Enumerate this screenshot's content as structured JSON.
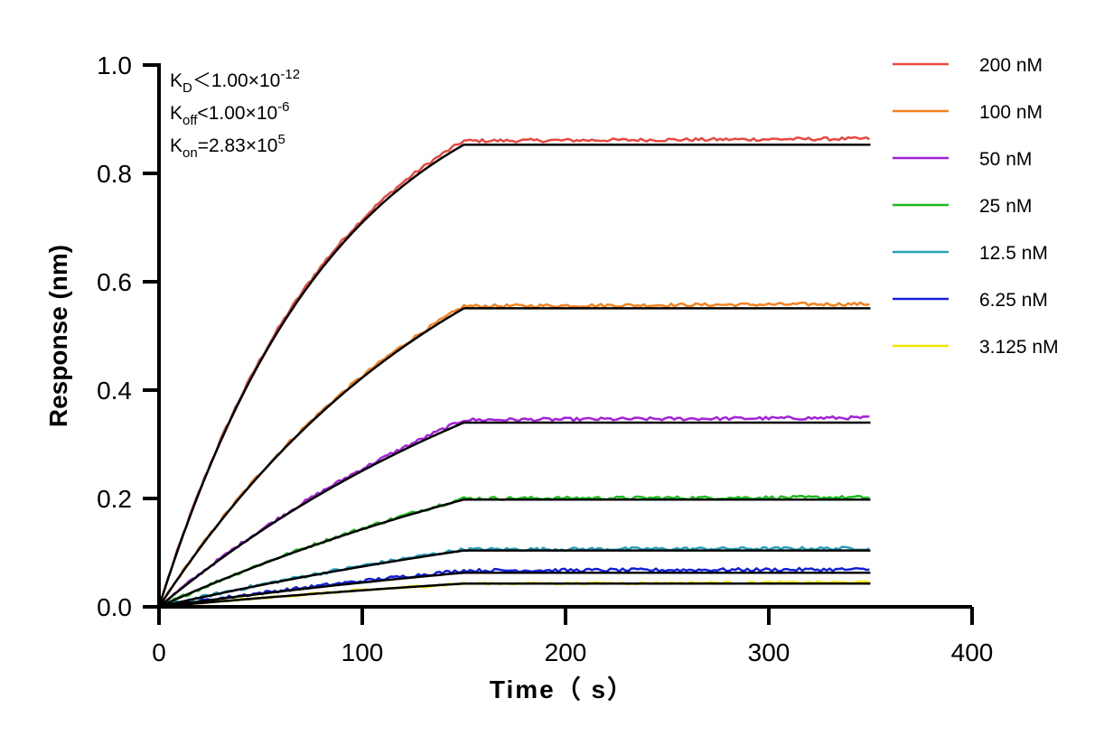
{
  "chart_data": {
    "type": "line",
    "xlabel": "Time（ s）",
    "ylabel": "Response (nm)",
    "xlim": [
      0,
      400
    ],
    "ylim": [
      0,
      1.0
    ],
    "xticks": [
      0,
      100,
      200,
      300,
      400
    ],
    "yticks": [
      0.0,
      0.2,
      0.4,
      0.6,
      0.8,
      1.0
    ],
    "x_tick_labels": [
      "0",
      "100",
      "200",
      "300",
      "400"
    ],
    "y_tick_labels": [
      "0.0",
      "0.2",
      "0.4",
      "0.6",
      "0.8",
      "1.0"
    ],
    "grid": false,
    "legend_position": "right",
    "association_end": 150,
    "end_time": 350,
    "annotations": {
      "kd": {
        "sym": "K",
        "sub": "D",
        "rel": "＜",
        "mant": "1.00×10",
        "exp": "-12"
      },
      "koff": {
        "sym": "K",
        "sub": "off",
        "rel": "<",
        "mant": "1.00×10",
        "exp": "-6"
      },
      "kon": {
        "sym": "K",
        "sub": "on",
        "rel": "=",
        "mant": "2.83×10",
        "exp": "5"
      }
    },
    "fit_color": "#000000",
    "series": [
      {
        "name": "200 nM",
        "color": "#e8483f",
        "plateau": 0.853,
        "k": 0.0115,
        "measured_plateau": 0.86,
        "noise": 0.003
      },
      {
        "name": "100 nM",
        "color": "#f5821f",
        "plateau": 0.551,
        "k": 0.0065,
        "measured_plateau": 0.555,
        "noise": 0.003
      },
      {
        "name": "50 nM",
        "color": "#a321d8",
        "plateau": 0.34,
        "k": 0.0045,
        "measured_plateau": 0.345,
        "noise": 0.003
      },
      {
        "name": "25 nM",
        "color": "#1ab81a",
        "plateau": 0.198,
        "k": 0.0035,
        "measured_plateau": 0.2,
        "noise": 0.003
      },
      {
        "name": "12.5 nM",
        "color": "#2aa0b8",
        "plateau": 0.104,
        "k": 0.003,
        "measured_plateau": 0.106,
        "noise": 0.003
      },
      {
        "name": "6.25 nM",
        "color": "#1420d8",
        "plateau": 0.063,
        "k": 0.0028,
        "measured_plateau": 0.067,
        "noise": 0.003
      },
      {
        "name": "3.125 nM",
        "color": "#f2e600",
        "plateau": 0.043,
        "k": 0.0026,
        "measured_plateau": 0.043,
        "noise": 0.002
      }
    ]
  }
}
